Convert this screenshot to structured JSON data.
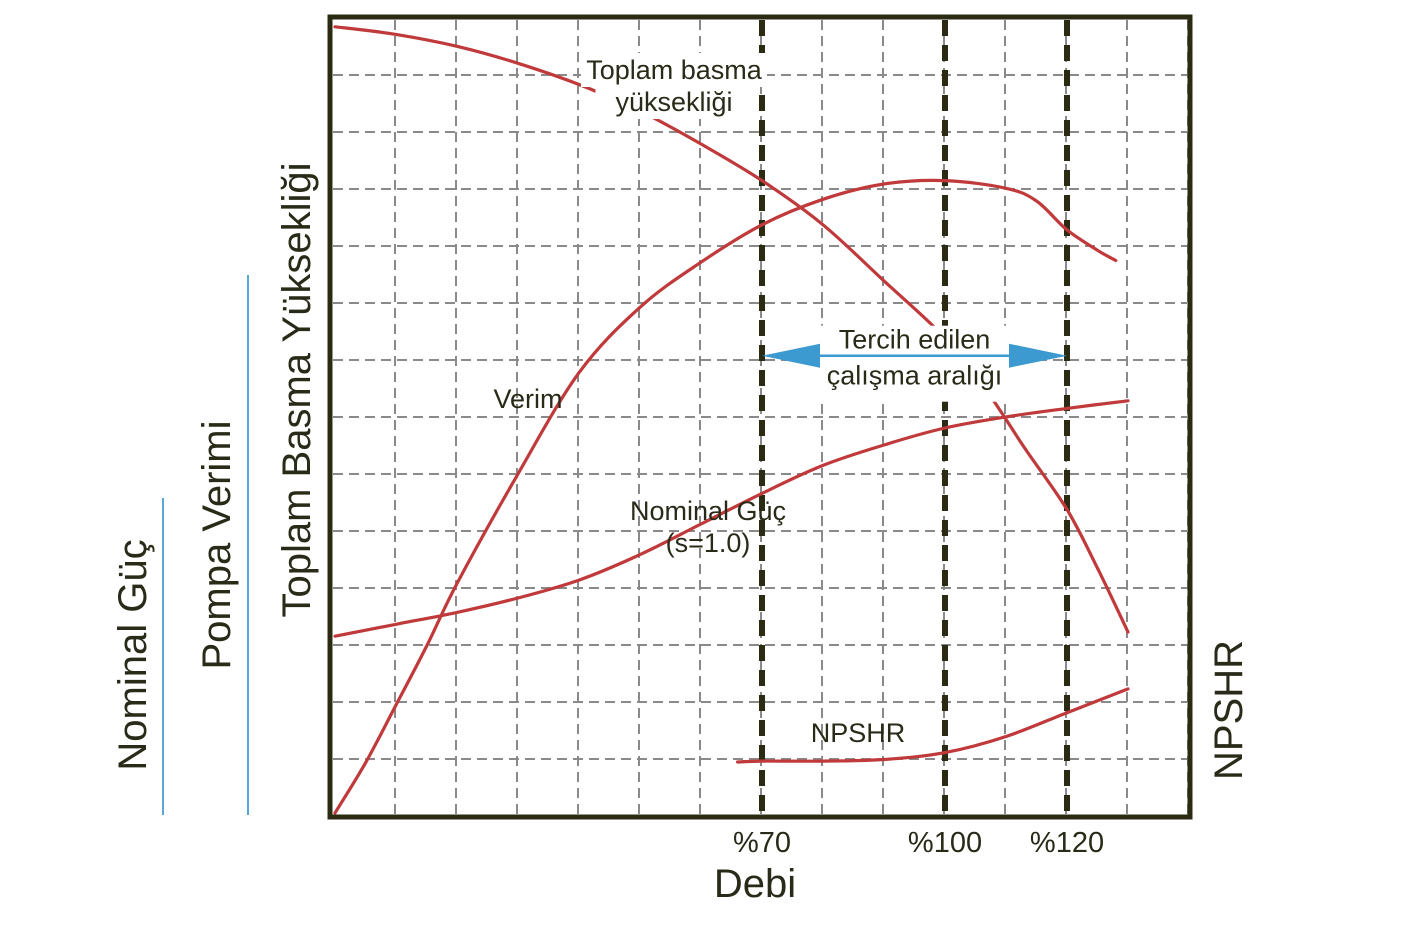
{
  "chart_data": {
    "type": "line",
    "xlabel": "Debi",
    "x_ticks": [
      {
        "x": 70,
        "label": "%70"
      },
      {
        "x": 100,
        "label": "%100"
      },
      {
        "x": 120,
        "label": "%120"
      }
    ],
    "xlim": [
      0,
      140
    ],
    "ylim": [
      0,
      100
    ],
    "grid": true,
    "left_axis_labels": [
      "Nominal Güç",
      "Pompa Verimi",
      "Toplam Basma Yüksekliği"
    ],
    "right_axis_label": "NPSHR",
    "series": [
      {
        "name": "Toplam basma yüksekliği",
        "label_lines": [
          "Toplam basma",
          "yüksekliği"
        ],
        "color": "#c0393b",
        "points": [
          [
            0,
            92.5
          ],
          [
            10,
            91.6
          ],
          [
            20,
            90.2
          ],
          [
            30,
            88.2
          ],
          [
            40,
            85.7
          ],
          [
            50,
            82.6
          ],
          [
            60,
            78.7
          ],
          [
            70,
            74.4
          ],
          [
            80,
            69.2
          ],
          [
            90,
            62.6
          ],
          [
            100,
            55.9
          ],
          [
            107,
            49.5
          ],
          [
            113,
            43.0
          ],
          [
            120,
            35.7
          ],
          [
            125,
            28.8
          ],
          [
            130,
            21.3
          ]
        ]
      },
      {
        "name": "Verim",
        "label_lines": [
          "Verim"
        ],
        "color": "#c0393b",
        "points": [
          [
            0,
            0
          ],
          [
            5,
            5.9
          ],
          [
            10,
            12.7
          ],
          [
            15,
            19.6
          ],
          [
            20,
            27.0
          ],
          [
            30,
            39.9
          ],
          [
            40,
            51.8
          ],
          [
            50,
            59.5
          ],
          [
            60,
            64.8
          ],
          [
            70,
            69.2
          ],
          [
            80,
            72.2
          ],
          [
            90,
            74.0
          ],
          [
            100,
            74.4
          ],
          [
            110,
            73.5
          ],
          [
            115,
            72.0
          ],
          [
            120,
            68.6
          ],
          [
            125,
            66.2
          ],
          [
            128,
            65.0
          ]
        ]
      },
      {
        "name": "Nominal Güç",
        "label_lines": [
          "Nominal Güç",
          "(s=1.0)"
        ],
        "color": "#c0393b",
        "points": [
          [
            0,
            20.8
          ],
          [
            10,
            22.2
          ],
          [
            20,
            23.6
          ],
          [
            30,
            25.3
          ],
          [
            40,
            27.4
          ],
          [
            50,
            30.4
          ],
          [
            60,
            34.0
          ],
          [
            70,
            37.6
          ],
          [
            80,
            40.9
          ],
          [
            90,
            43.3
          ],
          [
            100,
            45.3
          ],
          [
            110,
            46.6
          ],
          [
            120,
            47.6
          ],
          [
            130,
            48.5
          ]
        ]
      },
      {
        "name": "NPSHR",
        "label_lines": [
          "NPSHR"
        ],
        "color": "#c0393b",
        "points": [
          [
            66,
            6.0
          ],
          [
            70,
            6.1
          ],
          [
            80,
            6.1
          ],
          [
            90,
            6.3
          ],
          [
            100,
            7.1
          ],
          [
            110,
            9.0
          ],
          [
            120,
            11.8
          ],
          [
            130,
            14.6
          ]
        ]
      }
    ],
    "reference_lines": [
      {
        "x": 70,
        "label": "%70"
      },
      {
        "x": 100,
        "label": "%100"
      },
      {
        "x": 120,
        "label": "%120"
      }
    ],
    "annotation": {
      "text_lines": [
        "Tercih edilen",
        "çalışma aralığı"
      ],
      "from_x": 70,
      "to_x": 120,
      "y": 53.8,
      "arrow_color": "#3c9ad0"
    }
  },
  "colors": {
    "frame": "#2b2b14",
    "grid": "#8a8a8a",
    "curve": "#c0393b",
    "arrow": "#3c9ad0",
    "axis_underline": "#5aa7d6"
  }
}
